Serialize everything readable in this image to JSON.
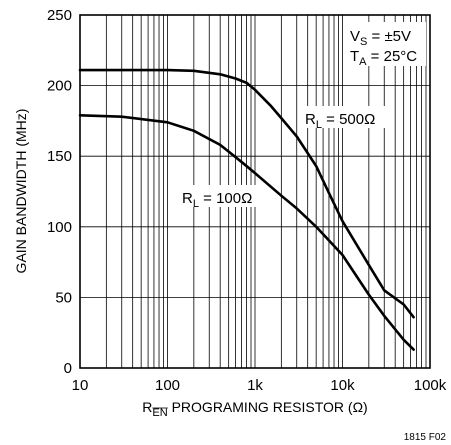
{
  "chart_data": {
    "type": "line",
    "xlabel": {
      "prefix": "R",
      "sub": "EN",
      "rest": " PROGRAMING RESISTOR (Ω)"
    },
    "ylabel": "GAIN BANDWIDTH (MHz)",
    "x_scale": "log",
    "xlim": [
      10,
      100000
    ],
    "ylim": [
      0,
      250
    ],
    "x_ticks": [
      10,
      100,
      1000,
      10000,
      100000
    ],
    "x_tick_labels": [
      "10",
      "100",
      "1k",
      "10k",
      "100k"
    ],
    "y_ticks": [
      0,
      50,
      100,
      150,
      200,
      250
    ],
    "y_tick_labels": [
      "0",
      "50",
      "100",
      "150",
      "200",
      "250"
    ],
    "grid": true,
    "annotations": {
      "vs": {
        "main": "V",
        "sub": "S",
        "rest": " = ±5V"
      },
      "ta": {
        "main": "T",
        "sub": "A",
        "rest": " = 25°C"
      },
      "rl500": {
        "main": "R",
        "sub": "L",
        "rest": " = 500Ω"
      },
      "rl100": {
        "main": "R",
        "sub": "L",
        "rest": " = 100Ω"
      }
    },
    "series": [
      {
        "x": [
          10,
          100,
          200,
          400,
          600,
          800,
          1000,
          1500,
          2000,
          3000,
          5000,
          7000,
          10000,
          20000,
          30000,
          50000,
          65000
        ],
        "y": [
          211,
          211,
          210.5,
          208,
          205,
          202,
          197,
          186,
          177,
          164,
          143,
          124,
          104,
          73,
          55,
          45,
          36
        ]
      },
      {
        "x": [
          10,
          30,
          100,
          200,
          400,
          700,
          1000,
          2000,
          3000,
          5000,
          10000,
          20000,
          30000,
          50000,
          65000
        ],
        "y": [
          179,
          178,
          174,
          168,
          158,
          146,
          138,
          122,
          113,
          100,
          80,
          52,
          37,
          20,
          13
        ]
      }
    ],
    "figure_id": "1815 F02"
  }
}
